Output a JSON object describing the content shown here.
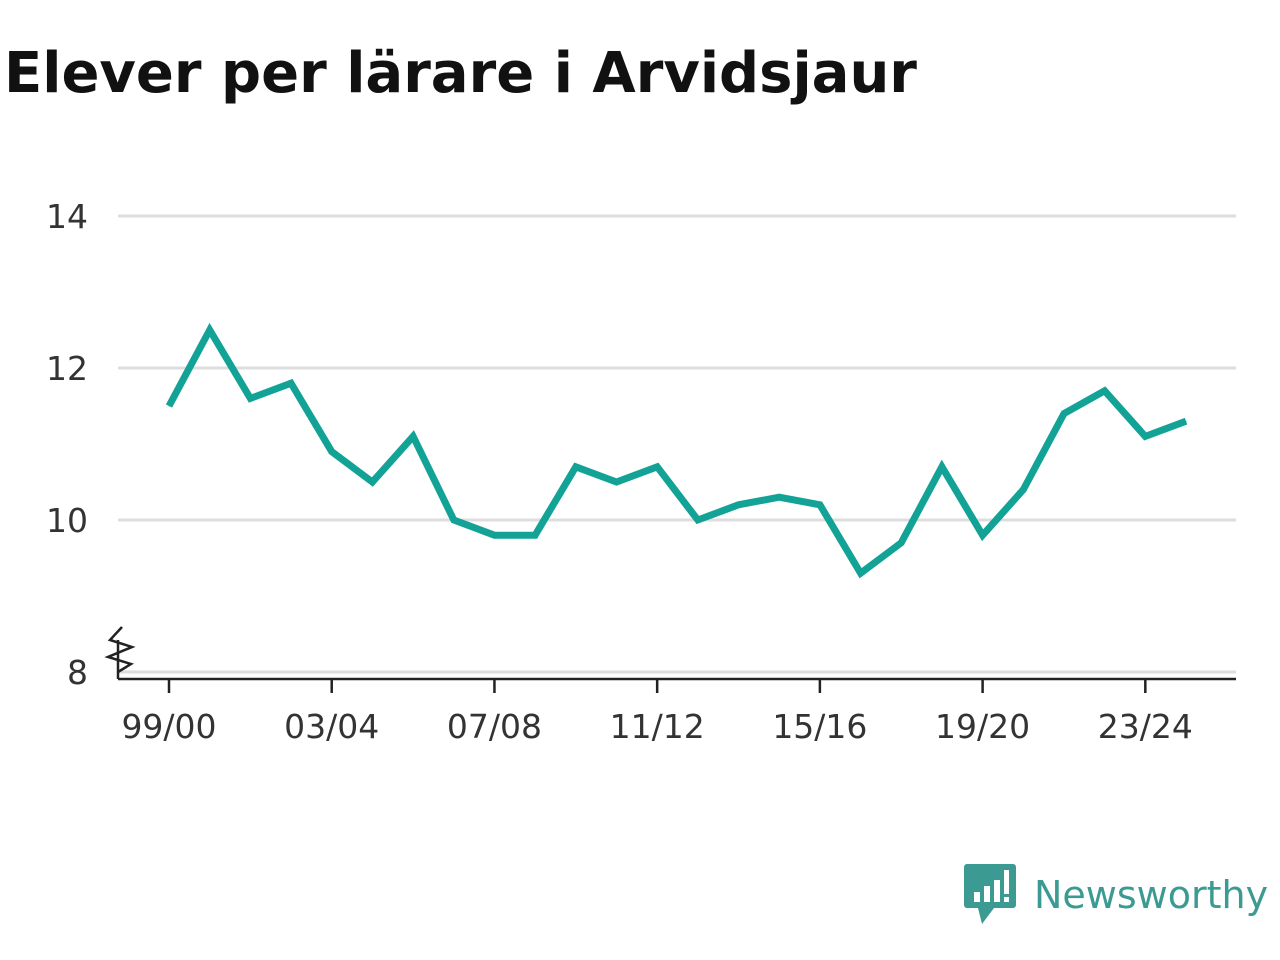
{
  "title": "Elever per lärare i Arvidsjaur",
  "brand": {
    "name": "Newsworthy",
    "color": "#3b9a92"
  },
  "colors": {
    "line": "#12a396",
    "grid": "#dddddd",
    "axis": "#222222"
  },
  "chart_data": {
    "type": "line",
    "title": "Elever per lärare i Arvidsjaur",
    "xlabel": "",
    "ylabel": "",
    "x": [
      "99/00",
      "00/01",
      "01/02",
      "02/03",
      "03/04",
      "04/05",
      "05/06",
      "06/07",
      "07/08",
      "08/09",
      "09/10",
      "10/11",
      "11/12",
      "12/13",
      "13/14",
      "14/15",
      "15/16",
      "16/17",
      "17/18",
      "18/19",
      "19/20",
      "20/21",
      "21/22",
      "22/23",
      "23/24",
      "24/25"
    ],
    "x_tick_labels": [
      "99/00",
      "03/04",
      "07/08",
      "11/12",
      "15/16",
      "19/20",
      "23/24"
    ],
    "series": [
      {
        "values": [
          11.5,
          12.5,
          11.6,
          11.8,
          10.9,
          10.5,
          11.1,
          10.0,
          9.8,
          9.8,
          10.7,
          10.5,
          10.7,
          10.0,
          10.2,
          10.3,
          10.2,
          9.3,
          9.7,
          10.7,
          9.8,
          10.4,
          11.4,
          11.7,
          11.1,
          11.3
        ]
      }
    ],
    "y_ticks": [
      8,
      10,
      12,
      14
    ],
    "ylim": [
      8,
      14
    ],
    "y_axis_break": true,
    "grid": true,
    "legend": "none"
  }
}
